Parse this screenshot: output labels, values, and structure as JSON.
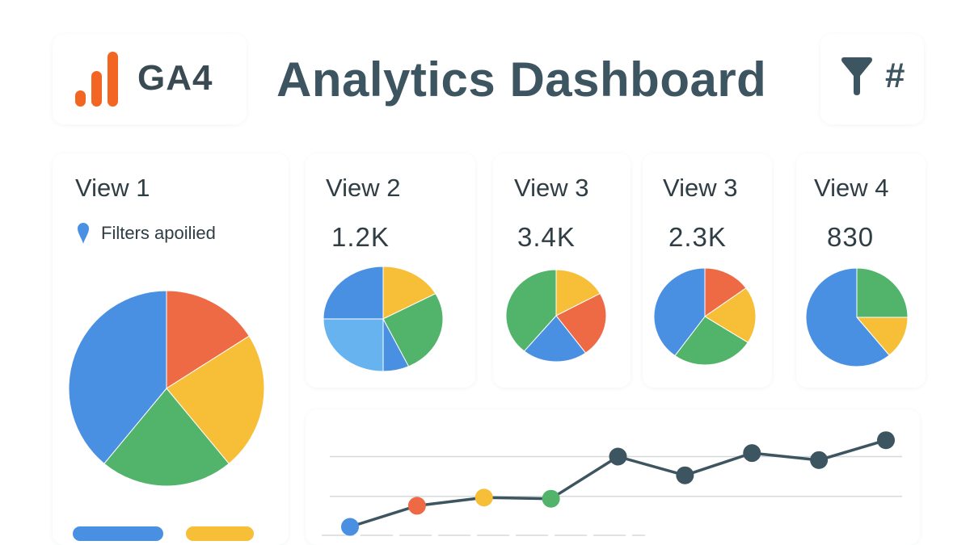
{
  "header": {
    "logo_text": "GA4",
    "title": "Analytics Dashboard",
    "filter_icon": "filter-icon",
    "hash_symbol": "#"
  },
  "colors": {
    "blue": "#4a90e2",
    "red": "#ee6a44",
    "yellow": "#f7be38",
    "green": "#52b36a",
    "lightblue": "#66b3f0",
    "dark": "#3d5560",
    "logo_orange": "#f26522"
  },
  "views": [
    {
      "title": "View 1",
      "filters_text": "Filters apoilied",
      "slices": [
        {
          "color": "red",
          "value": 0.16
        },
        {
          "color": "yellow",
          "value": 0.23
        },
        {
          "color": "green",
          "value": 0.22
        },
        {
          "color": "blue",
          "value": 0.39
        }
      ],
      "legend": [
        "blue",
        "yellow"
      ]
    },
    {
      "title": "View 2",
      "value": "1.2K",
      "slices": [
        {
          "color": "yellow",
          "value": 0.17
        },
        {
          "color": "green",
          "value": 0.26
        },
        {
          "color": "blue",
          "value": 0.07
        },
        {
          "color": "lightblue",
          "value": 0.25
        },
        {
          "color": "blue",
          "value": 0.25
        }
      ]
    },
    {
      "title": "View 3",
      "value": "3.4K",
      "slices": [
        {
          "color": "yellow",
          "value": 0.17
        },
        {
          "color": "red",
          "value": 0.23
        },
        {
          "color": "blue",
          "value": 0.21
        },
        {
          "color": "green",
          "value": 0.39
        }
      ]
    },
    {
      "title": "View 3",
      "value": "2.3K",
      "slices": [
        {
          "color": "red",
          "value": 0.15
        },
        {
          "color": "yellow",
          "value": 0.19
        },
        {
          "color": "green",
          "value": 0.26
        },
        {
          "color": "blue",
          "value": 0.4
        }
      ]
    },
    {
      "title": "View 4",
      "value": "830",
      "slices": [
        {
          "color": "green",
          "value": 0.25
        },
        {
          "color": "yellow",
          "value": 0.14
        },
        {
          "color": "blue",
          "value": 0.61
        }
      ]
    }
  ],
  "chart_data": {
    "type": "line",
    "x": [
      1,
      2,
      3,
      4,
      5,
      6,
      7,
      8,
      9
    ],
    "values": [
      10,
      28,
      35,
      34,
      70,
      54,
      73,
      67,
      84
    ],
    "ylim": [
      0,
      100
    ],
    "point_colors": [
      "blue",
      "red",
      "yellow",
      "green",
      "dark",
      "dark",
      "dark",
      "dark",
      "dark"
    ],
    "gridlines": [
      70,
      36
    ],
    "grid": true
  }
}
